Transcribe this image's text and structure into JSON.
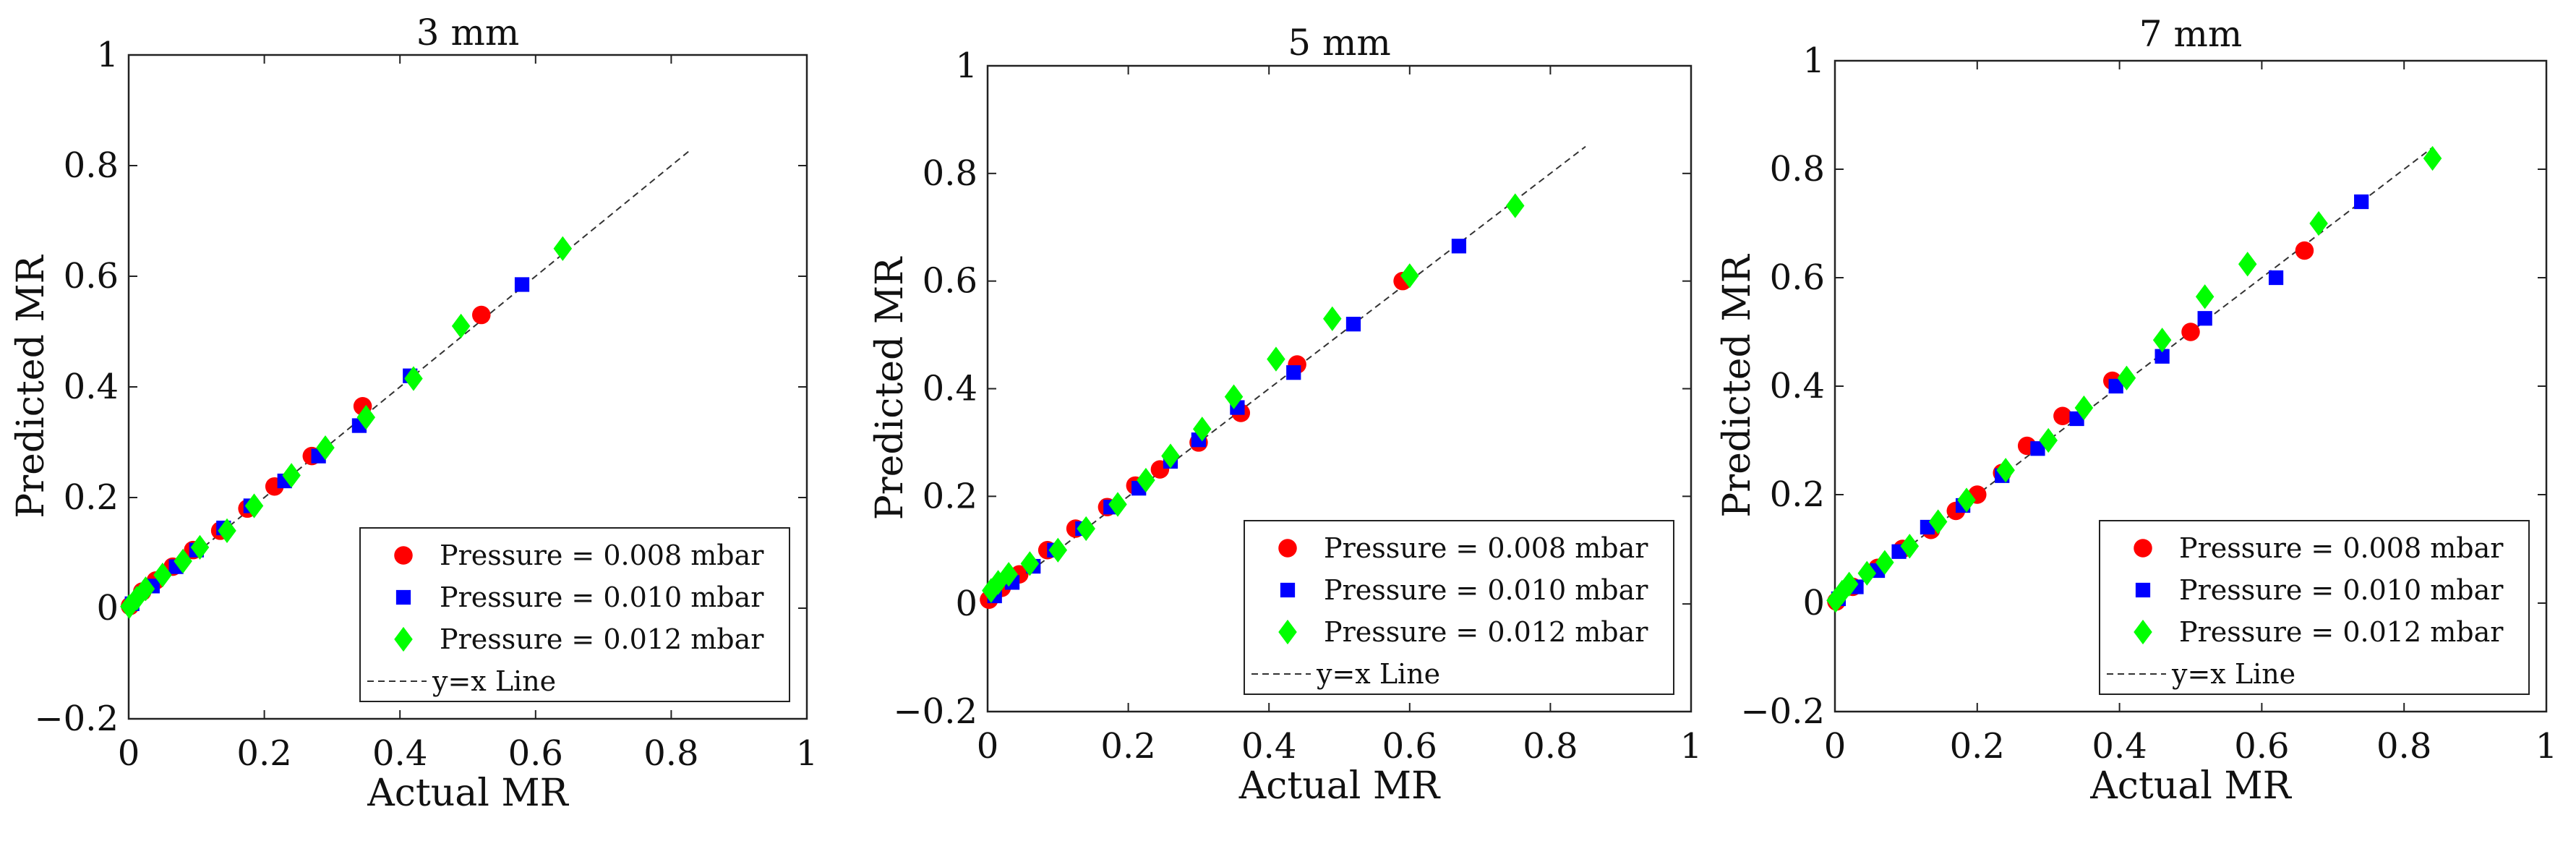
{
  "figure": {
    "colors": {
      "Pressure = 0.008 mbar": "#ff0000",
      "Pressure = 0.010 mbar": "#0000ff",
      "Pressure = 0.012 mbar": "#00ff00",
      "y=x Line": "#333333"
    },
    "markers": {
      "Pressure = 0.008 mbar": "circle",
      "Pressure = 0.010 mbar": "square",
      "Pressure = 0.012 mbar": "diamond",
      "y=x Line": "dashed-line"
    }
  },
  "chart_data": [
    {
      "type": "scatter",
      "title": "3 mm",
      "xlabel": "Actual MR",
      "ylabel": "Predicted MR",
      "xlim": [
        0,
        1
      ],
      "ylim": [
        -0.2,
        1
      ],
      "xticks": [
        0,
        0.2,
        0.4,
        0.6,
        0.8,
        1
      ],
      "yticks": [
        -0.2,
        0,
        0.2,
        0.4,
        0.6,
        0.8,
        1
      ],
      "xtick_labels": [
        "0",
        "0.2",
        "0.4",
        "0.6",
        "0.8",
        "1"
      ],
      "ytick_labels": [
        "−0.2",
        "0",
        "0.2",
        "0.4",
        "0.6",
        "0.8",
        "1"
      ],
      "legend_position": "bottom-right",
      "reference_line": {
        "name": "y=x Line",
        "x": [
          0,
          0.83
        ],
        "y": [
          0,
          0.83
        ]
      },
      "series": [
        {
          "name": "Pressure = 0.008 mbar",
          "x": [
            0.002,
            0.02,
            0.04,
            0.065,
            0.095,
            0.135,
            0.175,
            0.215,
            0.27,
            0.345,
            0.52
          ],
          "y": [
            0.004,
            0.03,
            0.05,
            0.075,
            0.105,
            0.14,
            0.18,
            0.22,
            0.275,
            0.365,
            0.53
          ]
        },
        {
          "name": "Pressure = 0.010 mbar",
          "x": [
            0.005,
            0.035,
            0.07,
            0.1,
            0.14,
            0.18,
            0.23,
            0.28,
            0.34,
            0.415,
            0.58
          ],
          "y": [
            0.008,
            0.04,
            0.075,
            0.105,
            0.145,
            0.185,
            0.23,
            0.275,
            0.33,
            0.42,
            0.585
          ]
        },
        {
          "name": "Pressure = 0.012 mbar",
          "x": [
            0.001,
            0.012,
            0.025,
            0.05,
            0.08,
            0.105,
            0.145,
            0.185,
            0.24,
            0.29,
            0.35,
            0.42,
            0.49,
            0.64
          ],
          "y": [
            0.003,
            0.018,
            0.035,
            0.06,
            0.085,
            0.11,
            0.14,
            0.185,
            0.24,
            0.29,
            0.345,
            0.415,
            0.51,
            0.65
          ]
        }
      ]
    },
    {
      "type": "scatter",
      "title": "5 mm",
      "xlabel": "Actual MR",
      "ylabel": "Predicted MR",
      "xlim": [
        0,
        1
      ],
      "ylim": [
        -0.2,
        1
      ],
      "xticks": [
        0,
        0.2,
        0.4,
        0.6,
        0.8,
        1
      ],
      "yticks": [
        -0.2,
        0,
        0.2,
        0.4,
        0.6,
        0.8,
        1
      ],
      "xtick_labels": [
        "0",
        "0.2",
        "0.4",
        "0.6",
        "0.8",
        "1"
      ],
      "ytick_labels": [
        "−0.2",
        "0",
        "0.2",
        "0.4",
        "0.6",
        "0.8",
        "1"
      ],
      "legend_position": "bottom-right",
      "reference_line": {
        "name": "y=x Line",
        "x": [
          0,
          0.85
        ],
        "y": [
          0,
          0.85
        ]
      },
      "series": [
        {
          "name": "Pressure = 0.008 mbar",
          "x": [
            0.002,
            0.02,
            0.045,
            0.085,
            0.125,
            0.17,
            0.21,
            0.245,
            0.3,
            0.36,
            0.44,
            0.59
          ],
          "y": [
            0.008,
            0.03,
            0.055,
            0.1,
            0.14,
            0.18,
            0.22,
            0.25,
            0.3,
            0.355,
            0.445,
            0.6
          ]
        },
        {
          "name": "Pressure = 0.010 mbar",
          "x": [
            0.01,
            0.035,
            0.065,
            0.095,
            0.135,
            0.175,
            0.215,
            0.26,
            0.3,
            0.355,
            0.435,
            0.52,
            0.67
          ],
          "y": [
            0.015,
            0.04,
            0.07,
            0.1,
            0.14,
            0.18,
            0.215,
            0.265,
            0.305,
            0.365,
            0.43,
            0.52,
            0.665
          ]
        },
        {
          "name": "Pressure = 0.012 mbar",
          "x": [
            0.005,
            0.015,
            0.03,
            0.06,
            0.1,
            0.14,
            0.185,
            0.225,
            0.26,
            0.305,
            0.35,
            0.41,
            0.49,
            0.6,
            0.75
          ],
          "y": [
            0.025,
            0.04,
            0.055,
            0.075,
            0.1,
            0.14,
            0.185,
            0.23,
            0.275,
            0.325,
            0.385,
            0.455,
            0.53,
            0.61,
            0.74
          ]
        }
      ]
    },
    {
      "type": "scatter",
      "title": "7 mm",
      "xlabel": "Actual MR",
      "ylabel": "Predicted MR",
      "xlim": [
        0,
        1
      ],
      "ylim": [
        -0.2,
        1
      ],
      "xticks": [
        0,
        0.2,
        0.4,
        0.6,
        0.8,
        1
      ],
      "yticks": [
        -0.2,
        0,
        0.2,
        0.4,
        0.6,
        0.8,
        1
      ],
      "xtick_labels": [
        "0",
        "0.2",
        "0.4",
        "0.6",
        "0.8",
        "1"
      ],
      "ytick_labels": [
        "−0.2",
        "0",
        "0.2",
        "0.4",
        "0.6",
        "0.8",
        "1"
      ],
      "legend_position": "bottom-right",
      "reference_line": {
        "name": "y=x Line",
        "x": [
          0,
          0.84
        ],
        "y": [
          0,
          0.84
        ]
      },
      "series": [
        {
          "name": "Pressure = 0.008 mbar",
          "x": [
            0.002,
            0.025,
            0.06,
            0.095,
            0.135,
            0.17,
            0.2,
            0.235,
            0.27,
            0.32,
            0.39,
            0.5,
            0.66
          ],
          "y": [
            0.003,
            0.03,
            0.065,
            0.1,
            0.135,
            0.17,
            0.2,
            0.24,
            0.29,
            0.345,
            0.41,
            0.5,
            0.65
          ]
        },
        {
          "name": "Pressure = 0.010 mbar",
          "x": [
            0.005,
            0.03,
            0.06,
            0.09,
            0.13,
            0.18,
            0.235,
            0.285,
            0.34,
            0.395,
            0.46,
            0.52,
            0.62,
            0.74
          ],
          "y": [
            0.008,
            0.03,
            0.06,
            0.095,
            0.14,
            0.18,
            0.235,
            0.285,
            0.34,
            0.4,
            0.455,
            0.525,
            0.6,
            0.74
          ]
        },
        {
          "name": "Pressure = 0.012 mbar",
          "x": [
            0.001,
            0.01,
            0.02,
            0.045,
            0.07,
            0.105,
            0.145,
            0.185,
            0.24,
            0.3,
            0.35,
            0.41,
            0.46,
            0.52,
            0.58,
            0.68,
            0.84
          ],
          "y": [
            0.005,
            0.02,
            0.035,
            0.055,
            0.075,
            0.105,
            0.15,
            0.19,
            0.245,
            0.3,
            0.36,
            0.415,
            0.485,
            0.565,
            0.625,
            0.7,
            0.82
          ]
        }
      ]
    }
  ]
}
